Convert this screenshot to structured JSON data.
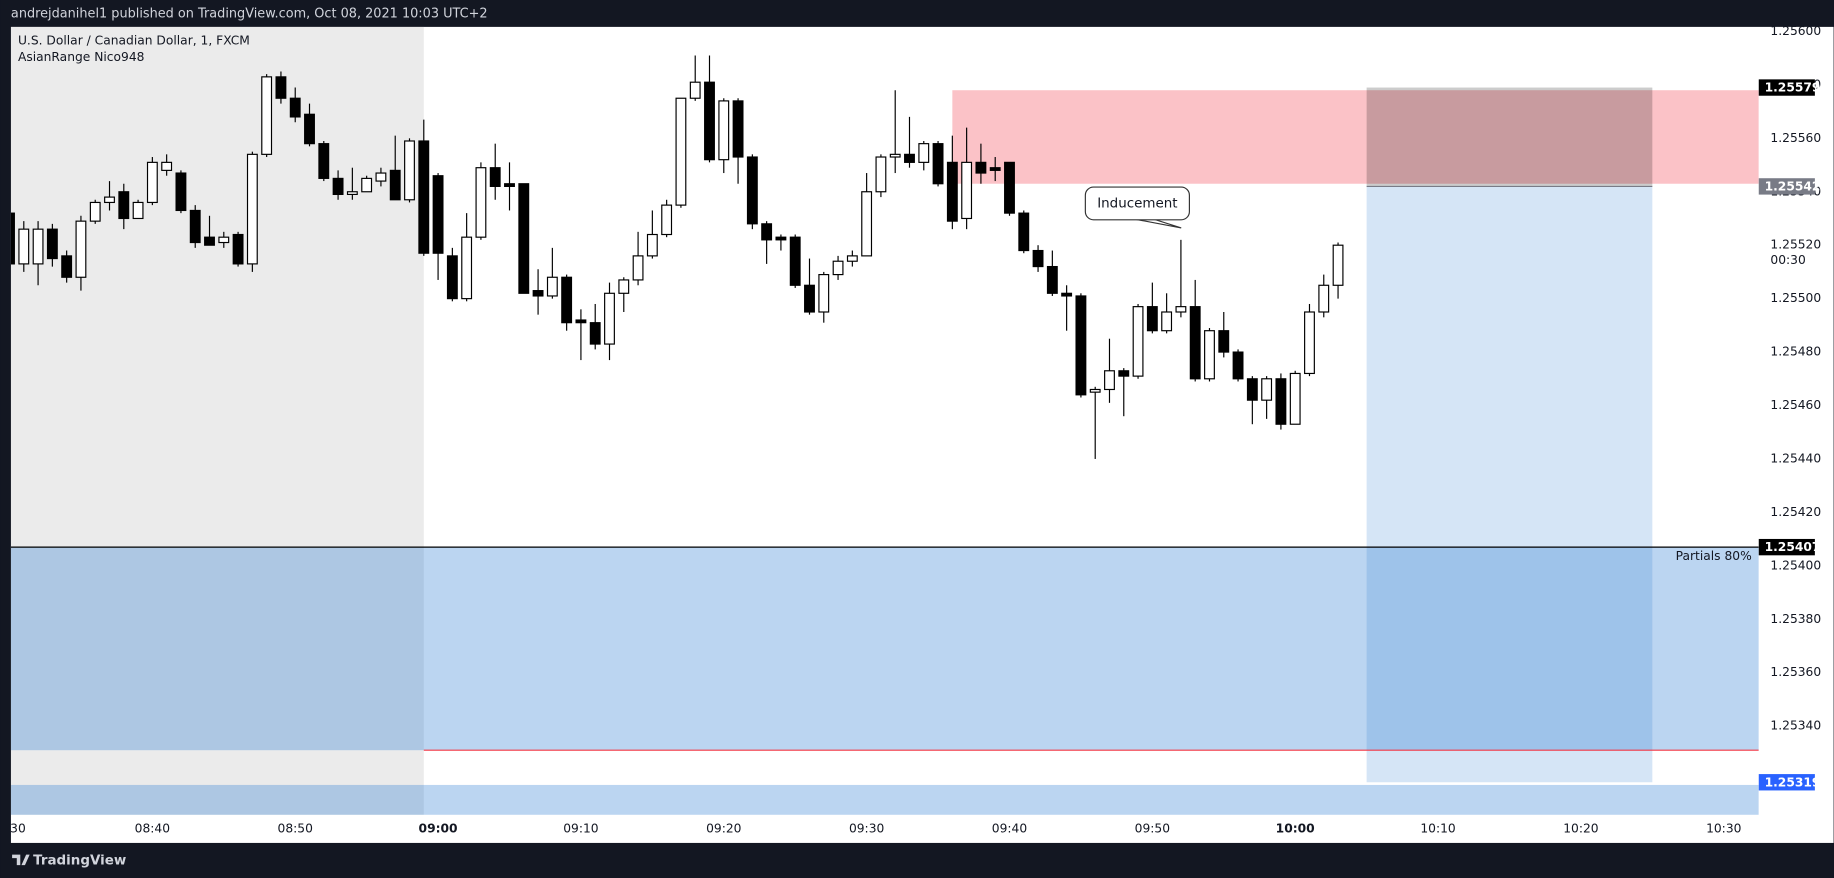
{
  "header": "andrejdanihel1 published on TradingView.com, Oct 08, 2021 10:03 UTC+2",
  "footer": "TradingView",
  "chart_data": {
    "type": "candlestick",
    "title": "U.S. Dollar / Canadian Dollar, 1, FXCM",
    "indicator": "AsianRange Nico948",
    "x": [
      "08:30",
      "08:31",
      "08:32",
      "08:33",
      "08:34",
      "08:35",
      "08:36",
      "08:37",
      "08:38",
      "08:39",
      "08:40",
      "08:41",
      "08:42",
      "08:43",
      "08:44",
      "08:45",
      "08:46",
      "08:47",
      "08:48",
      "08:49",
      "08:50",
      "08:51",
      "08:52",
      "08:53",
      "08:54",
      "08:55",
      "08:56",
      "08:57",
      "08:58",
      "08:59",
      "09:00",
      "09:01",
      "09:02",
      "09:03",
      "09:04",
      "09:05",
      "09:06",
      "09:07",
      "09:08",
      "09:09",
      "09:10",
      "09:11",
      "09:12",
      "09:13",
      "09:14",
      "09:15",
      "09:16",
      "09:17",
      "09:18",
      "09:19",
      "09:20",
      "09:21",
      "09:22",
      "09:23",
      "09:24",
      "09:25",
      "09:26",
      "09:27",
      "09:28",
      "09:29",
      "09:30",
      "09:31",
      "09:32",
      "09:33",
      "09:34",
      "09:35",
      "09:36",
      "09:37",
      "09:38",
      "09:39",
      "09:40",
      "09:41",
      "09:42",
      "09:43",
      "09:44",
      "09:45",
      "09:46",
      "09:47",
      "09:48",
      "09:49",
      "09:50",
      "09:51",
      "09:52",
      "09:53",
      "09:54",
      "09:55",
      "09:56",
      "09:57",
      "09:58",
      "09:59",
      "10:00",
      "10:01",
      "10:02",
      "10:03"
    ],
    "open": [
      1.25532,
      1.25513,
      1.25513,
      1.25526,
      1.25516,
      1.25508,
      1.25529,
      1.25536,
      1.2554,
      1.2553,
      1.25536,
      1.25548,
      1.25547,
      1.25533,
      1.25523,
      1.25521,
      1.25524,
      1.25513,
      1.25554,
      1.25583,
      1.25575,
      1.25569,
      1.25558,
      1.25545,
      1.25539,
      1.2554,
      1.25544,
      1.25548,
      1.25537,
      1.25559,
      1.25546,
      1.25516,
      1.255,
      1.25523,
      1.25549,
      1.25543,
      1.25543,
      1.25503,
      1.25501,
      1.25508,
      1.25492,
      1.25491,
      1.25483,
      1.25502,
      1.25507,
      1.25516,
      1.25524,
      1.25535,
      1.25575,
      1.25581,
      1.25552,
      1.25574,
      1.25553,
      1.25528,
      1.25523,
      1.25523,
      1.25505,
      1.25495,
      1.25509,
      1.25514,
      1.25516,
      1.2554,
      1.25553,
      1.25554,
      1.25551,
      1.25558,
      1.25551,
      1.2553,
      1.25551,
      1.25549,
      1.25551,
      1.25532,
      1.25518,
      1.25512,
      1.25502,
      1.25501,
      1.25465,
      1.25466,
      1.25473,
      1.25471,
      1.25497,
      1.25488,
      1.25495,
      1.25497,
      1.2547,
      1.25488,
      1.2548,
      1.2547,
      1.25462,
      1.2547,
      1.25453,
      1.25472,
      1.25495,
      1.25505
    ],
    "high": [
      1.25537,
      1.25529,
      1.25529,
      1.25528,
      1.25518,
      1.25531,
      1.25537,
      1.25544,
      1.25543,
      1.25537,
      1.25553,
      1.25554,
      1.25548,
      1.25535,
      1.25531,
      1.25525,
      1.25525,
      1.25555,
      1.25584,
      1.25585,
      1.25579,
      1.25573,
      1.25559,
      1.25548,
      1.25549,
      1.25546,
      1.25549,
      1.25561,
      1.2556,
      1.25567,
      1.25547,
      1.25519,
      1.25532,
      1.25551,
      1.25558,
      1.25551,
      1.25543,
      1.25511,
      1.25519,
      1.25509,
      1.25496,
      1.25498,
      1.25506,
      1.25508,
      1.25525,
      1.25533,
      1.25537,
      1.25575,
      1.25591,
      1.25591,
      1.25575,
      1.25575,
      1.25554,
      1.25529,
      1.25524,
      1.25524,
      1.25515,
      1.2551,
      1.25516,
      1.25518,
      1.25547,
      1.25554,
      1.25578,
      1.25568,
      1.25559,
      1.25559,
      1.25561,
      1.25564,
      1.25558,
      1.25553,
      1.25551,
      1.25533,
      1.2552,
      1.25518,
      1.25505,
      1.25502,
      1.25467,
      1.25485,
      1.25474,
      1.25498,
      1.25506,
      1.25502,
      1.25522,
      1.25507,
      1.25489,
      1.25495,
      1.25481,
      1.25471,
      1.25471,
      1.25472,
      1.25473,
      1.25498,
      1.25509,
      1.25521
    ],
    "low": [
      1.25512,
      1.2551,
      1.25505,
      1.25512,
      1.25506,
      1.25503,
      1.25528,
      1.25533,
      1.25526,
      1.2553,
      1.25535,
      1.25546,
      1.25532,
      1.25519,
      1.2552,
      1.25519,
      1.25512,
      1.2551,
      1.25553,
      1.25573,
      1.25566,
      1.25557,
      1.25544,
      1.25537,
      1.25537,
      1.2554,
      1.25542,
      1.25537,
      1.25536,
      1.25516,
      1.25507,
      1.25499,
      1.25499,
      1.25522,
      1.25537,
      1.25533,
      1.25502,
      1.25494,
      1.255,
      1.25488,
      1.25477,
      1.25481,
      1.25477,
      1.25495,
      1.25505,
      1.25515,
      1.25523,
      1.25534,
      1.25574,
      1.25551,
      1.25547,
      1.25543,
      1.25526,
      1.25513,
      1.25518,
      1.25504,
      1.25494,
      1.25491,
      1.25507,
      1.25512,
      1.25516,
      1.25538,
      1.25547,
      1.25549,
      1.25548,
      1.25542,
      1.25526,
      1.25526,
      1.25543,
      1.25544,
      1.25531,
      1.25517,
      1.2551,
      1.25501,
      1.25488,
      1.25463,
      1.2544,
      1.25461,
      1.25456,
      1.2547,
      1.25487,
      1.25487,
      1.25493,
      1.25469,
      1.25469,
      1.25478,
      1.25469,
      1.25453,
      1.25455,
      1.25451,
      1.25453,
      1.25471,
      1.25493,
      1.255
    ],
    "close": [
      1.25513,
      1.25526,
      1.25526,
      1.25515,
      1.25508,
      1.25529,
      1.25536,
      1.25538,
      1.2553,
      1.25536,
      1.25551,
      1.25551,
      1.25533,
      1.25521,
      1.2552,
      1.25523,
      1.25513,
      1.25554,
      1.25583,
      1.25575,
      1.25568,
      1.25558,
      1.25545,
      1.25539,
      1.2554,
      1.25545,
      1.25547,
      1.25537,
      1.25559,
      1.25517,
      1.25517,
      1.255,
      1.25523,
      1.25549,
      1.25542,
      1.25542,
      1.25502,
      1.25501,
      1.25508,
      1.25491,
      1.25491,
      1.25483,
      1.25502,
      1.25507,
      1.25516,
      1.25524,
      1.25535,
      1.25575,
      1.25581,
      1.25552,
      1.25574,
      1.25553,
      1.25528,
      1.25522,
      1.25522,
      1.25505,
      1.25495,
      1.25509,
      1.25514,
      1.25516,
      1.2554,
      1.25553,
      1.25554,
      1.25551,
      1.25558,
      1.25543,
      1.25529,
      1.25551,
      1.25547,
      1.25548,
      1.25532,
      1.25518,
      1.25512,
      1.25502,
      1.25501,
      1.25464,
      1.25466,
      1.25473,
      1.25471,
      1.25497,
      1.25488,
      1.25495,
      1.25497,
      1.2547,
      1.25488,
      1.2548,
      1.2547,
      1.25462,
      1.2547,
      1.25453,
      1.25472,
      1.25495,
      1.25505,
      1.2552
    ],
    "colors": {
      "up": "#ffffff",
      "down": "#000000",
      "wick": "#000000"
    },
    "xlim": [
      "08:30:06",
      "10:32:27"
    ],
    "xticks": [
      {
        "value": "08:30",
        "label": "30"
      },
      "08:40",
      "08:50",
      "09:00",
      "09:10",
      "09:20",
      "09:30",
      "09:40",
      "09:50",
      "10:00",
      "10:10",
      "10:20",
      "10:30"
    ],
    "ylim": [
      1.253068,
      1.256017
    ],
    "yticks": [
      {
        "value": 1.256,
        "label": "1.25600"
      },
      {
        "value": 1.2558,
        "label": "1.25580"
      },
      {
        "value": 1.2556,
        "label": "1.25560"
      },
      {
        "value": 1.2554,
        "label": "1.25540"
      },
      {
        "value": 1.2552,
        "label": "1.25520"
      },
      {
        "value": 1.255,
        "label": "1.25500"
      },
      {
        "value": 1.2548,
        "label": "1.25480"
      },
      {
        "value": 1.2546,
        "label": "1.25460"
      },
      {
        "value": 1.2544,
        "label": "1.25440"
      },
      {
        "value": 1.2542,
        "label": "1.25420"
      },
      {
        "value": 1.254,
        "label": "1.25400"
      },
      {
        "value": 1.2538,
        "label": "1.25380"
      },
      {
        "value": 1.2536,
        "label": "1.25360"
      },
      {
        "value": 1.2534,
        "label": "1.25340"
      }
    ],
    "grid": false,
    "countdown": "00:30",
    "session": {
      "end": "08:59",
      "color": "#ebebeb"
    },
    "supply_zone": {
      "top": 1.25578,
      "bottom": 1.25543,
      "start": "09:36",
      "color": "#f23645"
    },
    "partials_zone": {
      "top": 1.25407,
      "bottom": 1.25331,
      "label": "Partials 80%",
      "color": "#2b7cd3",
      "line_color": "#000000",
      "bottom_line_color": "#f23645"
    },
    "lower_zone": {
      "top": 1.25318,
      "color": "#2b7cd3"
    },
    "position": {
      "stop": 1.25579,
      "entry": 1.25542,
      "target": 1.25319,
      "start": "10:05",
      "end": "10:25",
      "stop_color": "#000000",
      "target_color": "#2b7cd3",
      "entry_label_color": "#787b86",
      "target_label_color": "#2962ff"
    },
    "annotation": "Inducement"
  }
}
